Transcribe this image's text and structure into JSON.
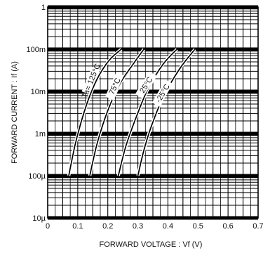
{
  "chart_data": {
    "type": "line",
    "xlabel": "FORWARD  VOLTAGE : Vf  (V)",
    "ylabel": "FORWARD  CURRENT : If  (A)",
    "xlim": [
      0,
      0.7
    ],
    "ylim": [
      1e-05,
      1
    ],
    "yscale": "log",
    "grid": true,
    "x_ticks": [
      {
        "value": 0,
        "label": "0"
      },
      {
        "value": 0.1,
        "label": "0.1"
      },
      {
        "value": 0.2,
        "label": "0.2"
      },
      {
        "value": 0.3,
        "label": "0.3"
      },
      {
        "value": 0.4,
        "label": "0.4"
      },
      {
        "value": 0.5,
        "label": "0.5"
      },
      {
        "value": 0.6,
        "label": "0.6"
      },
      {
        "value": 0.7,
        "label": "0.7"
      }
    ],
    "y_ticks": [
      {
        "value": 1,
        "label": "1"
      },
      {
        "value": 0.1,
        "label": "100m"
      },
      {
        "value": 0.01,
        "label": "10m"
      },
      {
        "value": 0.001,
        "label": "1m"
      },
      {
        "value": 0.0001,
        "label": "100µ"
      },
      {
        "value": 1e-05,
        "label": "10µ"
      }
    ],
    "series": [
      {
        "name": "Ta= 125°C",
        "points": [
          [
            0.07,
            0.0001
          ],
          [
            0.095,
            0.0007
          ],
          [
            0.13,
            0.005
          ],
          [
            0.165,
            0.02
          ],
          [
            0.205,
            0.055
          ],
          [
            0.245,
            0.1
          ]
        ]
      },
      {
        "name": "75°C",
        "points": [
          [
            0.14,
            0.0001
          ],
          [
            0.165,
            0.0006
          ],
          [
            0.2,
            0.0035
          ],
          [
            0.24,
            0.015
          ],
          [
            0.285,
            0.045
          ],
          [
            0.32,
            0.1
          ]
        ]
      },
      {
        "name": "25°C",
        "points": [
          [
            0.235,
            0.0001
          ],
          [
            0.26,
            0.0005
          ],
          [
            0.295,
            0.0025
          ],
          [
            0.335,
            0.012
          ],
          [
            0.385,
            0.045
          ],
          [
            0.43,
            0.1
          ]
        ]
      },
      {
        "name": "-25°C",
        "points": [
          [
            0.3,
            0.0001
          ],
          [
            0.32,
            0.0004
          ],
          [
            0.345,
            0.0015
          ],
          [
            0.385,
            0.0075
          ],
          [
            0.44,
            0.035
          ],
          [
            0.49,
            0.1
          ]
        ]
      }
    ]
  }
}
